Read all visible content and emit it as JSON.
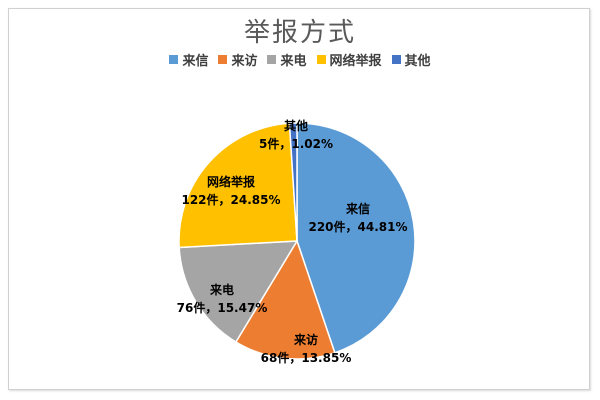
{
  "chart_data": {
    "type": "pie",
    "title": "举报方式",
    "legend_position": "top",
    "slices": [
      {
        "name": "来信",
        "count": 220,
        "count_label": "220件",
        "percent": 44.81,
        "percent_label": "44.81%",
        "color": "#5B9BD5"
      },
      {
        "name": "来访",
        "count": 68,
        "count_label": "68件",
        "percent": 13.85,
        "percent_label": "13.85%",
        "color": "#ED7D31"
      },
      {
        "name": "来电",
        "count": 76,
        "count_label": "76件",
        "percent": 15.47,
        "percent_label": "15.47%",
        "color": "#A5A5A5"
      },
      {
        "name": "网络举报",
        "count": 122,
        "count_label": "122件",
        "percent": 24.85,
        "percent_label": "24.85%",
        "color": "#FFC000"
      },
      {
        "name": "其他",
        "count": 5,
        "count_label": "5件",
        "percent": 1.02,
        "percent_label": "1.02%",
        "color": "#4472C4"
      }
    ]
  }
}
